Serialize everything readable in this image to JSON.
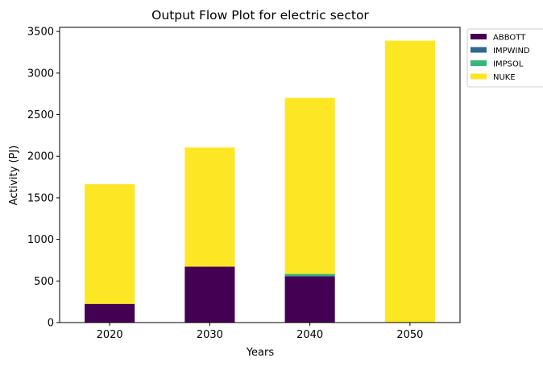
{
  "chart_data": {
    "type": "bar",
    "stacked": true,
    "title": "Output Flow Plot for electric sector",
    "xlabel": "Years",
    "ylabel": "Activity (PJ)",
    "categories": [
      "2020",
      "2030",
      "2040",
      "2050"
    ],
    "ylim": [
      0,
      3550
    ],
    "yticks": [
      0,
      500,
      1000,
      1500,
      2000,
      2500,
      3000,
      3500
    ],
    "legend_position": "outside-top-right",
    "series": [
      {
        "name": "ABBOTT",
        "color": "#440154",
        "values": [
          225,
          672,
          555,
          0
        ]
      },
      {
        "name": "IMPWIND",
        "color": "#31688e",
        "values": [
          0,
          0,
          10,
          0
        ]
      },
      {
        "name": "IMPSOL",
        "color": "#35b779",
        "values": [
          0,
          0,
          20,
          0
        ]
      },
      {
        "name": "NUKE",
        "color": "#fde725",
        "values": [
          1438,
          1433,
          2117,
          3390
        ]
      }
    ]
  }
}
